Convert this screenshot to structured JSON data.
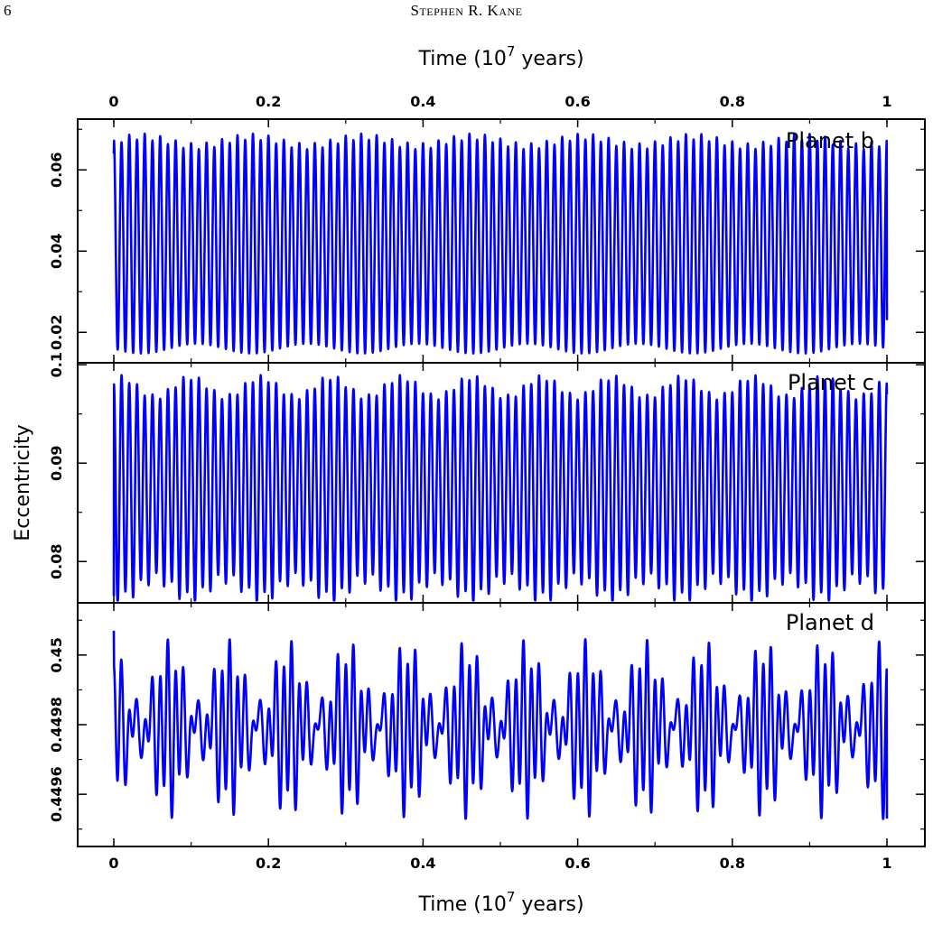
{
  "page": {
    "number": "6",
    "running_head": "Stephen R. Kane"
  },
  "chart_data": {
    "type": "line",
    "x_label_top": "Time (10^7 years)",
    "x_label_bottom": "Time (10^7 years)",
    "x_label_base": "Time (10",
    "x_label_exp": "7",
    "x_label_tail": " years)",
    "ylabel": "Eccentricity",
    "xlim": [
      0,
      1
    ],
    "x_ticks": [
      "0",
      "0.2",
      "0.4",
      "0.6",
      "0.8",
      "1"
    ],
    "series_color": "#0000ff",
    "panels": [
      {
        "label": "Planet b",
        "ylim": [
          0.0125,
          0.0725
        ],
        "y_ticks": [
          "0.02",
          "0.04",
          "0.06"
        ],
        "oscillation": {
          "mean": 0.0415,
          "amplitude": 0.0255,
          "cycles": 100,
          "beat_amplitude": 0.0012,
          "beat_cycles": 7,
          "start": 0.064,
          "end": 0.023
        }
      },
      {
        "label": "Planet c",
        "ylim": [
          0.0758,
          0.1002
        ],
        "y_ticks": [
          "0.08",
          "0.09",
          "0.1"
        ],
        "oscillation": {
          "mean": 0.0875,
          "amplitude": 0.0102,
          "cycles": 100,
          "beat_amplitude": 0.001,
          "beat_cycles": 11,
          "start": 0.0765,
          "end": 0.097
        }
      },
      {
        "label": "Planet d",
        "ylim": [
          0.44945,
          0.45015
        ],
        "y_ticks": [
          "0.4496",
          "0.4498",
          "0.45"
        ],
        "oscillation": {
          "mean": 0.44979,
          "amplitude": 0.00013,
          "cycles": 100,
          "beat_amplitude": 9e-05,
          "beat_cycles": 13,
          "start": 0.45007,
          "end": 0.44953
        }
      }
    ]
  }
}
